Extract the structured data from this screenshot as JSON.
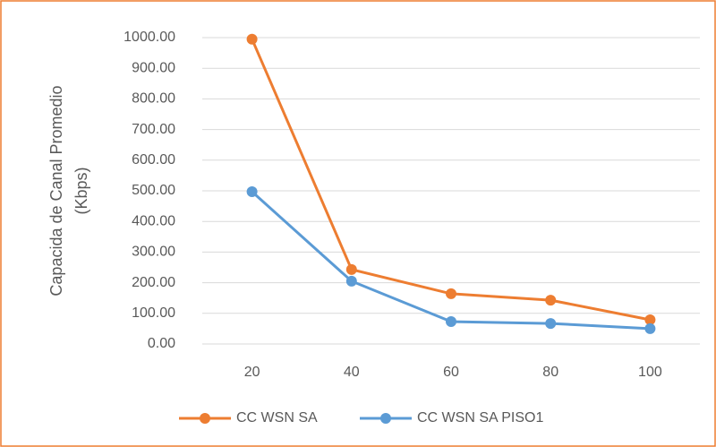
{
  "chart_data": {
    "type": "line",
    "ylabel": [
      "Capacida de Canal Promedio",
      "(Kbps)"
    ],
    "categories": [
      "20",
      "40",
      "60",
      "80",
      "100"
    ],
    "series": [
      {
        "name": "CC WSN SA",
        "color": "#ed7d31",
        "values": [
          995,
          243,
          164,
          143,
          79
        ]
      },
      {
        "name": "CC WSN SA PISO1",
        "color": "#5b9bd5",
        "values": [
          497,
          205,
          73,
          67,
          50
        ]
      }
    ],
    "ylim": [
      0,
      1000
    ],
    "yticks": [
      {
        "value": 0,
        "label": "0.00"
      },
      {
        "value": 100,
        "label": "100.00"
      },
      {
        "value": 200,
        "label": "200.00"
      },
      {
        "value": 300,
        "label": "300.00"
      },
      {
        "value": 400,
        "label": "400.00"
      },
      {
        "value": 500,
        "label": "500.00"
      },
      {
        "value": 600,
        "label": "600.00"
      },
      {
        "value": 700,
        "label": "700.00"
      },
      {
        "value": 800,
        "label": "800.00"
      },
      {
        "value": 900,
        "label": "900.00"
      },
      {
        "value": 1000,
        "label": "1000.00"
      }
    ],
    "grid": true,
    "legend": "bottom"
  }
}
